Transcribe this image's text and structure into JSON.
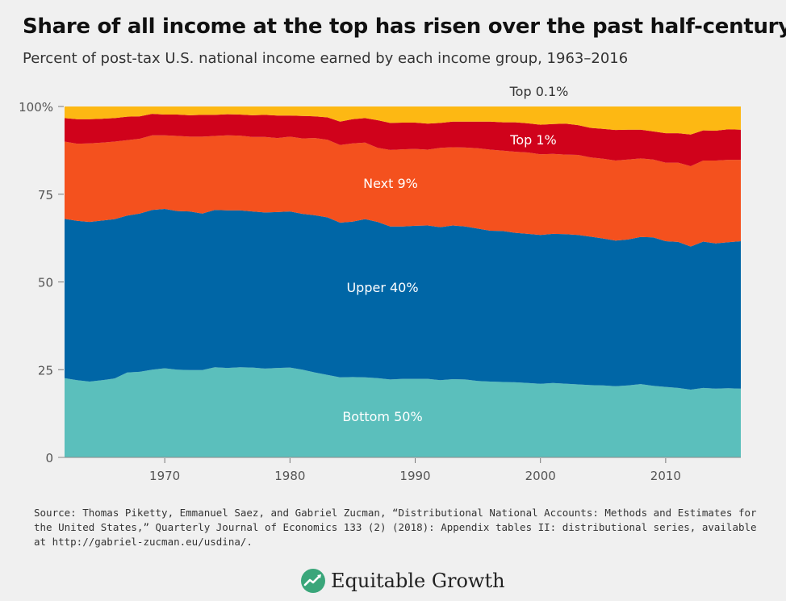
{
  "header": {
    "title": "Share of all income at the top has risen over the past half-century",
    "subtitle": "Percent of post-tax U.S. national income earned by each income group, 1963–2016"
  },
  "footer": {
    "source": "Source: Thomas Piketty, Emmanuel Saez, and Gabriel Zucman, “Distributional National Accounts: Methods and Estimates for the United States,” Quarterly Journal of Economics 133 (2) (2018): Appendix tables II: distributional series, available at http://gabriel-zucman.eu/usdina/.",
    "brand": "Equitable Growth",
    "brand_icon": "equitable-growth-logo-icon"
  },
  "chart_data": {
    "type": "area",
    "stacked": true,
    "title": "Share of all income at the top has risen over the past half-century",
    "subtitle": "Percent of post-tax U.S. national income earned by each income group, 1963–2016",
    "xlabel": "",
    "ylabel": "",
    "xlim": [
      1962,
      2016
    ],
    "ylim": [
      0,
      100
    ],
    "x_ticks": [
      "1970",
      "1980",
      "1990",
      "2000",
      "2010"
    ],
    "y_ticks": [
      "0",
      "25",
      "50",
      "75",
      "100%"
    ],
    "grid": false,
    "x": [
      1962,
      1963,
      1964,
      1965,
      1966,
      1967,
      1968,
      1969,
      1970,
      1971,
      1972,
      1973,
      1974,
      1975,
      1976,
      1977,
      1978,
      1979,
      1980,
      1981,
      1982,
      1983,
      1984,
      1985,
      1986,
      1987,
      1988,
      1989,
      1990,
      1991,
      1992,
      1993,
      1994,
      1995,
      1996,
      1997,
      1998,
      1999,
      2000,
      2001,
      2002,
      2003,
      2004,
      2005,
      2006,
      2007,
      2008,
      2009,
      2010,
      2011,
      2012,
      2013,
      2014,
      2015,
      2016
    ],
    "series": [
      {
        "name": "Bottom 50%",
        "color": "#5bbfbc",
        "values": [
          22.6,
          22.0,
          21.6,
          22.0,
          22.5,
          24.2,
          24.4,
          25.0,
          25.4,
          25.0,
          24.9,
          24.9,
          25.7,
          25.5,
          25.7,
          25.6,
          25.3,
          25.5,
          25.6,
          25.0,
          24.2,
          23.5,
          22.8,
          22.9,
          22.8,
          22.6,
          22.2,
          22.4,
          22.4,
          22.4,
          22.0,
          22.3,
          22.2,
          21.8,
          21.6,
          21.5,
          21.4,
          21.2,
          21.0,
          21.2,
          21.0,
          20.8,
          20.6,
          20.5,
          20.3,
          20.5,
          20.9,
          20.4,
          20.1,
          19.8,
          19.3,
          19.8,
          19.6,
          19.7,
          19.6
        ]
      },
      {
        "name": "Upper 40%",
        "color": "#0066a6",
        "values": [
          45.4,
          45.4,
          45.5,
          45.5,
          45.4,
          44.7,
          45.1,
          45.5,
          45.4,
          45.2,
          45.2,
          44.6,
          44.8,
          44.9,
          44.7,
          44.5,
          44.5,
          44.4,
          44.5,
          44.4,
          44.8,
          44.9,
          44.1,
          44.3,
          45.1,
          44.5,
          43.6,
          43.4,
          43.6,
          43.7,
          43.6,
          43.8,
          43.6,
          43.4,
          43.0,
          43.0,
          42.6,
          42.5,
          42.4,
          42.5,
          42.6,
          42.6,
          42.3,
          41.9,
          41.5,
          41.6,
          41.9,
          42.3,
          41.5,
          41.6,
          40.8,
          41.7,
          41.4,
          41.6,
          42.0
        ]
      },
      {
        "name": "Next 9%",
        "color": "#f4511e",
        "values": [
          22.0,
          22.0,
          22.4,
          22.2,
          22.1,
          21.5,
          21.3,
          21.3,
          21.0,
          21.4,
          21.3,
          21.9,
          21.1,
          21.4,
          21.3,
          21.2,
          21.5,
          21.1,
          21.3,
          21.5,
          22.0,
          22.1,
          22.1,
          22.3,
          21.8,
          21.1,
          21.8,
          22.0,
          21.9,
          21.6,
          22.6,
          22.3,
          22.5,
          22.9,
          23.1,
          22.9,
          23.1,
          23.2,
          23.0,
          22.8,
          22.7,
          22.8,
          22.6,
          22.7,
          22.8,
          22.8,
          22.4,
          22.2,
          22.4,
          22.6,
          22.9,
          23.1,
          23.6,
          23.5,
          23.2
        ]
      },
      {
        "name": "Top 1%",
        "color": "#d0021b",
        "values": [
          6.7,
          7.0,
          6.9,
          6.8,
          6.7,
          6.7,
          6.4,
          6.1,
          5.9,
          6.1,
          6.1,
          6.2,
          6.0,
          6.0,
          6.0,
          6.2,
          6.3,
          6.4,
          6.0,
          6.4,
          6.2,
          6.4,
          6.7,
          6.9,
          7.0,
          7.9,
          7.7,
          7.6,
          7.5,
          7.4,
          7.1,
          7.3,
          7.4,
          7.6,
          8.0,
          8.1,
          8.4,
          8.3,
          8.4,
          8.5,
          8.8,
          8.5,
          8.4,
          8.5,
          8.7,
          8.5,
          8.2,
          8.0,
          8.4,
          8.4,
          9.0,
          8.6,
          8.5,
          8.7,
          8.6
        ]
      },
      {
        "name": "Top 0.1%",
        "color": "#fdb813",
        "values": [
          3.3,
          3.6,
          3.6,
          3.5,
          3.3,
          2.9,
          2.8,
          2.1,
          2.3,
          2.3,
          2.5,
          2.4,
          2.4,
          2.2,
          2.3,
          2.5,
          2.4,
          2.6,
          2.6,
          2.7,
          2.8,
          3.1,
          4.3,
          3.6,
          3.3,
          3.9,
          4.7,
          4.6,
          4.6,
          4.9,
          4.7,
          4.3,
          4.3,
          4.3,
          4.3,
          4.5,
          4.5,
          4.8,
          5.2,
          5.0,
          4.9,
          5.3,
          6.1,
          6.4,
          6.7,
          6.6,
          6.6,
          7.1,
          7.6,
          7.6,
          8.0,
          6.8,
          6.9,
          6.5,
          6.6
        ]
      }
    ],
    "labels": [
      {
        "series": "Bottom 50%",
        "text": "Bottom 50%"
      },
      {
        "series": "Upper 40%",
        "text": "Upper 40%"
      },
      {
        "series": "Next 9%",
        "text": "Next 9%"
      },
      {
        "series": "Top 1%",
        "text": "Top 1%"
      },
      {
        "series": "Top 0.1%",
        "text": "Top 0.1%"
      }
    ]
  }
}
